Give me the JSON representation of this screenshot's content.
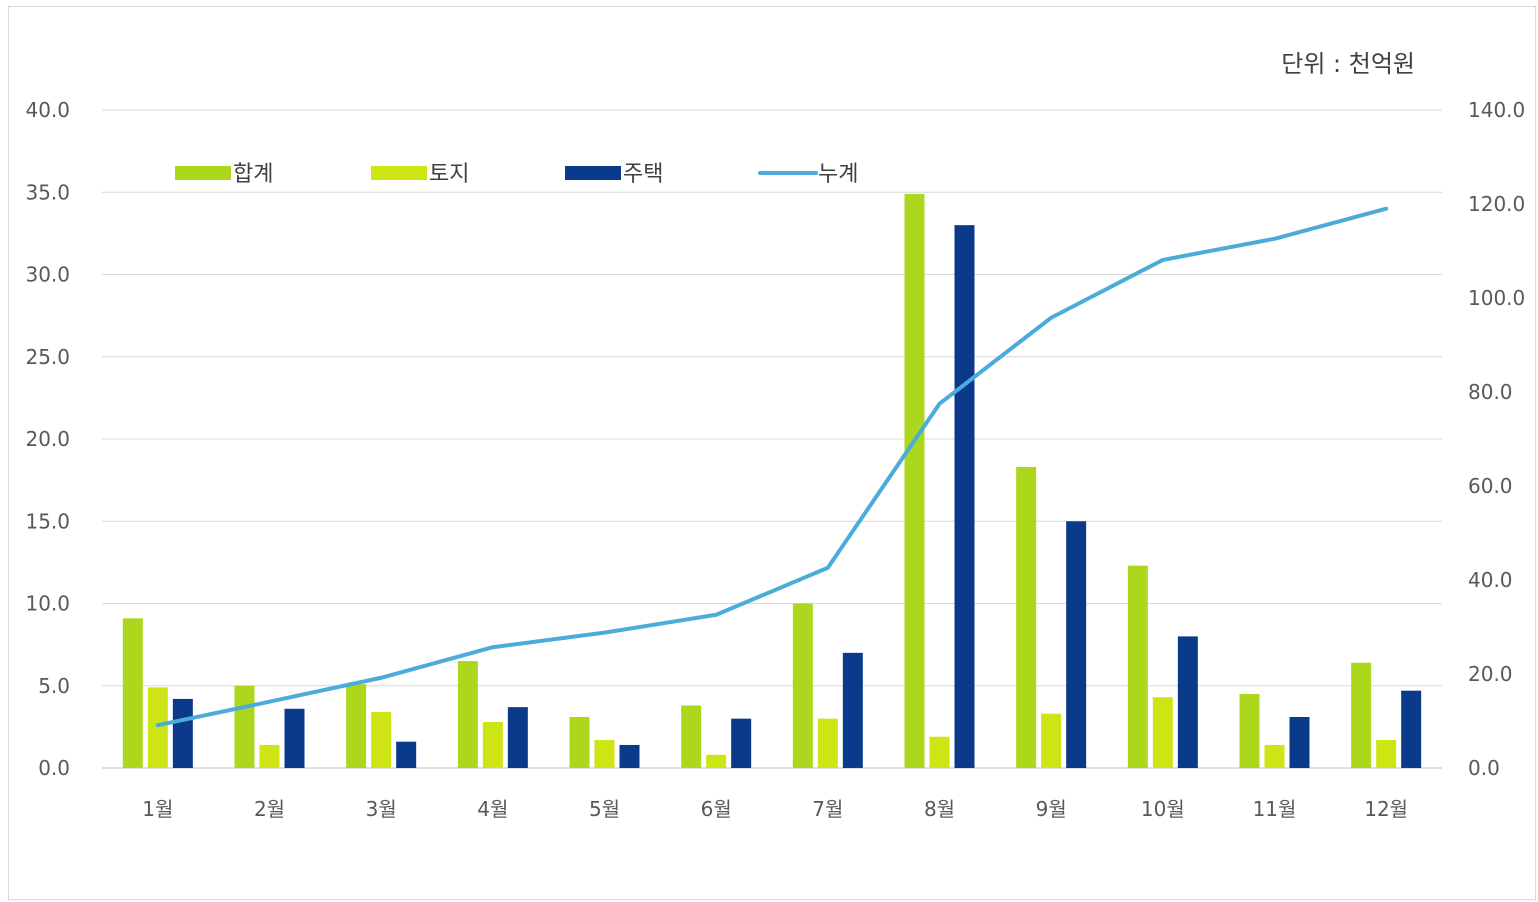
{
  "chart_data": {
    "type": "bar",
    "unit_label": "단위 : 천억원",
    "categories": [
      "1월",
      "2월",
      "3월",
      "4월",
      "5월",
      "6월",
      "7월",
      "8월",
      "9월",
      "10월",
      "11월",
      "12월"
    ],
    "series": [
      {
        "name": "합계",
        "type": "bar",
        "axis": "left",
        "color": "#add71c",
        "values": [
          9.1,
          5.0,
          5.1,
          6.5,
          3.1,
          3.8,
          10.0,
          34.9,
          18.3,
          12.3,
          4.5,
          6.4
        ]
      },
      {
        "name": "토지",
        "type": "bar",
        "axis": "left",
        "color": "#cde512",
        "values": [
          4.9,
          1.4,
          3.4,
          2.8,
          1.7,
          0.8,
          3.0,
          1.9,
          3.3,
          4.3,
          1.4,
          1.7
        ]
      },
      {
        "name": "주택",
        "type": "bar",
        "axis": "left",
        "color": "#0c3a8a",
        "values": [
          4.2,
          3.6,
          1.6,
          3.7,
          1.4,
          3.0,
          7.0,
          33.0,
          15.0,
          8.0,
          3.1,
          4.7
        ]
      },
      {
        "name": "누계",
        "type": "line",
        "axis": "right",
        "color": "#4bacd9",
        "values": [
          9.1,
          14.1,
          19.2,
          25.7,
          28.8,
          32.6,
          42.6,
          77.5,
          95.8,
          108.1,
          112.6,
          119.0
        ]
      }
    ],
    "left_axis": {
      "min": 0,
      "max": 40,
      "step": 5,
      "ticks": [
        "0.0",
        "5.0",
        "10.0",
        "15.0",
        "20.0",
        "25.0",
        "30.0",
        "35.0",
        "40.0"
      ]
    },
    "right_axis": {
      "min": 0,
      "max": 140,
      "step": 20,
      "ticks": [
        "0.0",
        "20.0",
        "40.0",
        "60.0",
        "80.0",
        "100.0",
        "120.0",
        "140.0"
      ]
    },
    "grid": true,
    "legend_position": "top-left"
  }
}
